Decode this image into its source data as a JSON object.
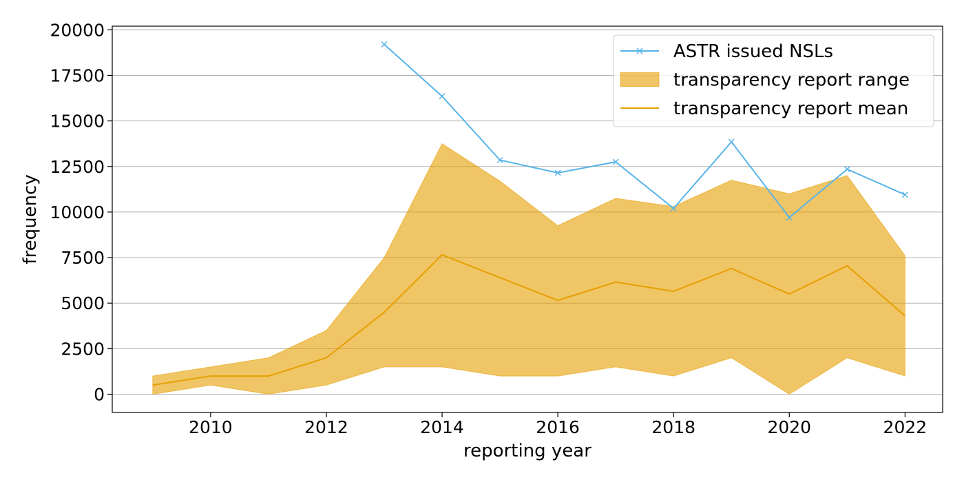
{
  "chart_data": {
    "type": "line",
    "xlabel": "reporting year",
    "ylabel": "frequency",
    "xlim": [
      2008.3,
      2022.65
    ],
    "ylim": [
      -1000,
      20200
    ],
    "grid": "horizontal",
    "legend_position": "top-right",
    "x_ticks": [
      {
        "value": 2010,
        "label": "2010"
      },
      {
        "value": 2012,
        "label": "2012"
      },
      {
        "value": 2014,
        "label": "2014"
      },
      {
        "value": 2016,
        "label": "2016"
      },
      {
        "value": 2018,
        "label": "2018"
      },
      {
        "value": 2020,
        "label": "2020"
      },
      {
        "value": 2022,
        "label": "2022"
      }
    ],
    "y_ticks": [
      {
        "value": 0,
        "label": "0"
      },
      {
        "value": 2500,
        "label": "2500"
      },
      {
        "value": 5000,
        "label": "5000"
      },
      {
        "value": 7500,
        "label": "7500"
      },
      {
        "value": 10000,
        "label": "10000"
      },
      {
        "value": 12500,
        "label": "12500"
      },
      {
        "value": 15000,
        "label": "15000"
      },
      {
        "value": 17500,
        "label": "17500"
      },
      {
        "value": 20000,
        "label": "20000"
      }
    ],
    "series": [
      {
        "name": "ASTR issued NSLs",
        "kind": "line-marker",
        "color": "#56B4E9",
        "x": [
          2013,
          2014,
          2015,
          2016,
          2017,
          2018,
          2019,
          2020,
          2021,
          2022
        ],
        "y": [
          19200,
          16350,
          12850,
          12150,
          12750,
          10200,
          13850,
          9700,
          12350,
          10950
        ]
      },
      {
        "name": "transparency report range",
        "kind": "band",
        "color": "#E69F00",
        "x": [
          2009,
          2010,
          2011,
          2012,
          2013,
          2014,
          2015,
          2016,
          2017,
          2018,
          2019,
          2020,
          2021,
          2022
        ],
        "lower": [
          0,
          500,
          0,
          500,
          1500,
          1500,
          1000,
          1000,
          1500,
          1000,
          2000,
          0,
          2000,
          1000
        ],
        "upper": [
          1000,
          1500,
          2000,
          3500,
          7500,
          13750,
          11700,
          9250,
          10750,
          10300,
          11750,
          11000,
          12000,
          7600
        ]
      },
      {
        "name": "transparency report mean",
        "kind": "line",
        "color": "#E69F00",
        "x": [
          2009,
          2010,
          2011,
          2012,
          2013,
          2014,
          2015,
          2016,
          2017,
          2018,
          2019,
          2020,
          2021,
          2022
        ],
        "y": [
          500,
          1000,
          1000,
          2000,
          4500,
          7650,
          6400,
          5150,
          6150,
          5650,
          6900,
          5500,
          7050,
          4300
        ]
      }
    ]
  }
}
